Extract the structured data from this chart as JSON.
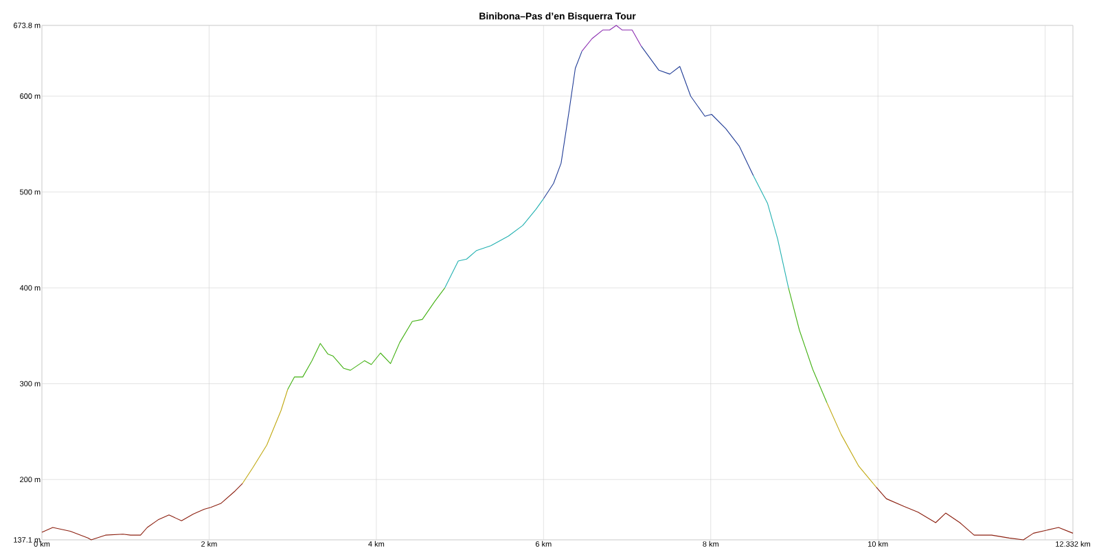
{
  "chart_data": {
    "type": "line",
    "title": "Binibona–Pas d’en Bisquerra Tour",
    "xlim": [
      0,
      12.332
    ],
    "ylim": [
      137.1,
      673.8
    ],
    "xticks": [
      {
        "value": 0,
        "label": "0 km"
      },
      {
        "value": 2,
        "label": "2 km"
      },
      {
        "value": 4,
        "label": "4 km"
      },
      {
        "value": 6,
        "label": "6 km"
      },
      {
        "value": 8,
        "label": "8 km"
      },
      {
        "value": 10,
        "label": "10 km"
      },
      {
        "value": 12,
        "label": null
      },
      {
        "value": 12.332,
        "label": "12.332 km"
      }
    ],
    "yticks": [
      {
        "value": 137.1,
        "label": "137.1 m"
      },
      {
        "value": 200,
        "label": "200 m"
      },
      {
        "value": 300,
        "label": "300 m"
      },
      {
        "value": 400,
        "label": "400 m"
      },
      {
        "value": 500,
        "label": "500 m"
      },
      {
        "value": 600,
        "label": "600 m"
      },
      {
        "value": 673.8,
        "label": "673.8 m"
      }
    ],
    "grid": true,
    "series": [
      {
        "color": "#8b1e0e",
        "x": [
          0,
          0.13,
          0.34,
          0.55,
          0.59,
          0.76,
          0.97,
          1.06,
          1.18,
          1.26,
          1.39,
          1.52,
          1.67,
          1.81,
          1.94,
          2.02,
          2.14,
          2.31,
          2.4
        ],
        "values": [
          145,
          150,
          146,
          139,
          137.1,
          142,
          143,
          142,
          142,
          150,
          158,
          163,
          157,
          164,
          169,
          171,
          175,
          188,
          196
        ]
      },
      {
        "color": "#c0a810",
        "x": [
          2.4,
          2.52,
          2.69,
          2.86,
          2.94
        ],
        "values": [
          196,
          212,
          236,
          272,
          294
        ]
      },
      {
        "color": "#40b010",
        "x": [
          2.94,
          3.02,
          3.12,
          3.23,
          3.33,
          3.42,
          3.48,
          3.61,
          3.69,
          3.86,
          3.94,
          4.05,
          4.17,
          4.28,
          4.43,
          4.55,
          4.7,
          4.82
        ],
        "values": [
          294,
          307,
          307,
          324,
          342,
          331,
          329,
          316,
          314,
          324,
          320,
          332,
          321,
          343,
          365,
          367,
          386,
          400
        ]
      },
      {
        "color": "#20b0b0",
        "x": [
          4.82,
          4.98,
          5.08,
          5.2,
          5.37,
          5.58,
          5.75,
          5.91,
          6.0
        ],
        "values": [
          400,
          428,
          430,
          439,
          444,
          454,
          465,
          482,
          493
        ]
      },
      {
        "color": "#203c96",
        "x": [
          6.0,
          6.12,
          6.21,
          6.31,
          6.38,
          6.46
        ],
        "values": [
          493,
          509,
          530,
          587,
          629,
          647
        ]
      },
      {
        "color": "#8a2ab0",
        "x": [
          6.46,
          6.58,
          6.71,
          6.79,
          6.87,
          6.94,
          7.06,
          7.17
        ],
        "values": [
          647,
          660,
          669,
          669,
          673.8,
          669,
          669,
          652
        ]
      },
      {
        "color": "#203c96",
        "x": [
          7.17,
          7.38,
          7.51,
          7.63,
          7.76,
          7.93,
          8.01,
          8.18,
          8.34,
          8.51
        ],
        "values": [
          652,
          627,
          623,
          631,
          600,
          579,
          581,
          566,
          548,
          517
        ]
      },
      {
        "color": "#20b0b0",
        "x": [
          8.51,
          8.68,
          8.8,
          8.93
        ],
        "values": [
          517,
          488,
          451,
          400
        ]
      },
      {
        "color": "#40b010",
        "x": [
          8.93,
          9.06,
          9.22,
          9.39
        ],
        "values": [
          400,
          356,
          315,
          280
        ]
      },
      {
        "color": "#c0a810",
        "x": [
          9.39,
          9.56,
          9.77,
          9.98
        ],
        "values": [
          280,
          247,
          214,
          192
        ]
      },
      {
        "color": "#8b1e0e",
        "x": [
          9.98,
          10.1,
          10.31,
          10.48,
          10.69,
          10.81,
          10.98,
          11.15,
          11.36,
          11.57,
          11.74,
          11.86,
          12.16,
          12.332
        ],
        "values": [
          192,
          180,
          172,
          166,
          155,
          165,
          155,
          142,
          142,
          139,
          137.1,
          144,
          150,
          144
        ]
      }
    ]
  }
}
